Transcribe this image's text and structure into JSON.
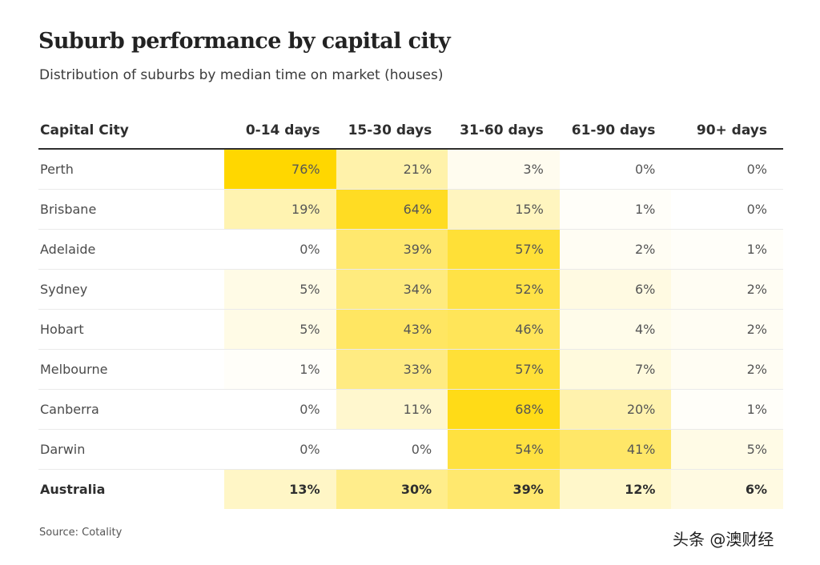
{
  "chart_data": {
    "type": "heatmap",
    "title": "Suburb performance by capital city",
    "subtitle": "Distribution of suburbs by median time on market (houses)",
    "row_header": "Capital City",
    "columns": [
      "0-14 days",
      "15-30 days",
      "31-60 days",
      "61-90 days",
      "90+ days"
    ],
    "rows": [
      {
        "name": "Perth",
        "values": [
          76,
          21,
          3,
          0,
          0
        ]
      },
      {
        "name": "Brisbane",
        "values": [
          19,
          64,
          15,
          1,
          0
        ]
      },
      {
        "name": "Adelaide",
        "values": [
          0,
          39,
          57,
          2,
          1
        ]
      },
      {
        "name": "Sydney",
        "values": [
          5,
          34,
          52,
          6,
          2
        ]
      },
      {
        "name": "Hobart",
        "values": [
          5,
          43,
          46,
          4,
          2
        ]
      },
      {
        "name": "Melbourne",
        "values": [
          1,
          33,
          57,
          7,
          2
        ]
      },
      {
        "name": "Canberra",
        "values": [
          0,
          11,
          68,
          20,
          1
        ]
      },
      {
        "name": "Darwin",
        "values": [
          0,
          0,
          54,
          41,
          5
        ]
      }
    ],
    "total": {
      "name": "Australia",
      "values": [
        13,
        30,
        39,
        12,
        6
      ]
    },
    "value_suffix": "%",
    "color_scale": {
      "low": "#ffffff",
      "high": "#ffd700"
    },
    "source": "Source: Cotality"
  },
  "watermark": "头条 @澳财经"
}
